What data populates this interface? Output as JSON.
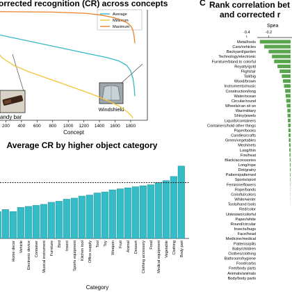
{
  "chart_data": [
    {
      "type": "line",
      "title": "orrected recognition (CR) across concepts",
      "xlabel": "Concept",
      "xticks": [
        "200",
        "400",
        "600",
        "800",
        "1000",
        "1200",
        "1400",
        "1600",
        "1800"
      ],
      "xlim": [
        0,
        1854
      ],
      "ylim": [
        0,
        1
      ],
      "legend": "top-right",
      "series": [
        {
          "name": "Average",
          "color": "#35b9c4",
          "points": [
            [
              0,
              0.8
            ],
            [
              100,
              0.78
            ],
            [
              300,
              0.75
            ],
            [
              500,
              0.72
            ],
            [
              700,
              0.69
            ],
            [
              900,
              0.66
            ],
            [
              1100,
              0.63
            ],
            [
              1300,
              0.6
            ],
            [
              1500,
              0.57
            ],
            [
              1650,
              0.54
            ],
            [
              1750,
              0.5
            ],
            [
              1800,
              0.45
            ],
            [
              1830,
              0.38
            ],
            [
              1845,
              0.3
            ],
            [
              1854,
              0.22
            ]
          ]
        },
        {
          "name": "Minimum",
          "color": "#f3c636",
          "points": [
            [
              0,
              0.75
            ],
            [
              50,
              0.66
            ],
            [
              150,
              0.57
            ],
            [
              300,
              0.5
            ],
            [
              500,
              0.44
            ],
            [
              700,
              0.39
            ],
            [
              900,
              0.34
            ],
            [
              1100,
              0.29
            ],
            [
              1300,
              0.24
            ],
            [
              1500,
              0.18
            ],
            [
              1650,
              0.13
            ],
            [
              1750,
              0.08
            ],
            [
              1800,
              0.05
            ],
            [
              1830,
              0.02
            ]
          ]
        },
        {
          "name": "Maximum",
          "color": "#e8822a",
          "points": [
            [
              0,
              0.99
            ],
            [
              800,
              0.985
            ],
            [
              1200,
              0.975
            ],
            [
              1400,
              0.96
            ],
            [
              1550,
              0.94
            ],
            [
              1650,
              0.92
            ],
            [
              1750,
              0.89
            ],
            [
              1800,
              0.86
            ],
            [
              1830,
              0.82
            ],
            [
              1845,
              0.76
            ],
            [
              1854,
              0.7
            ]
          ]
        }
      ],
      "annotations": [
        "andy bar",
        "Windshield"
      ]
    },
    {
      "type": "bar",
      "title": "Average CR by higher object category",
      "xlabel": "Category",
      "color": "#34bcc7",
      "reference_line": 0.72,
      "ylim": [
        0.45,
        0.88
      ],
      "categories": [
        "Home decor",
        "Vehicle",
        "Electronic device",
        "Container",
        "Musical instrument",
        "Furniture",
        "Bird",
        "Insect",
        "Sports equipment",
        "Kitchen tool",
        "Office supply",
        "Tool",
        "Toy",
        "Weapon",
        "Fruit",
        "Animal",
        "Dessert",
        "Clothing accessory",
        "Food",
        "Medical equipment",
        "Vegetable",
        "Clothing",
        "Body part"
      ],
      "values": [
        0.58,
        0.6,
        0.605,
        0.61,
        0.615,
        0.625,
        0.63,
        0.64,
        0.645,
        0.655,
        0.66,
        0.67,
        0.675,
        0.685,
        0.69,
        0.695,
        0.7,
        0.705,
        0.71,
        0.72,
        0.73,
        0.75,
        0.8
      ],
      "leading_bars": [
        0.58,
        0.59
      ]
    },
    {
      "type": "bar",
      "title": "Rank correlation bet",
      "title_line2": "and corrected r",
      "xlabel": "Spea",
      "xticks": [
        "-0.4",
        "-0.2"
      ],
      "xlim": [
        -0.5,
        0
      ],
      "color": "#5aa64e",
      "categories": [
        "Metal/tools",
        "Cars/vehicles",
        "Backyard/garden",
        "Technology/electronic",
        "Furniture/bland to colorful",
        "Royalty/gold",
        "Flight/air",
        "Tall/big",
        "Wood/brown",
        "Instruments/music",
        "Construction/long",
        "Water/ocean",
        "Circular/round",
        "Wheels/can sit on",
        "War/military",
        "Shiny/jewels",
        "Liquids/containers",
        "Containers/hold other things",
        "Paper/books",
        "Candles/crafts",
        "Green/vegetables",
        "Mesh/nets",
        "Long/thin",
        "Fire/heat",
        "Black/accessories",
        "Long/rope",
        "Dirt/grainy",
        "Pattern/patterned",
        "Sports/sport",
        "Feminine/flowers",
        "Rope/bands",
        "Colorful/colors",
        "White/winter",
        "Tools/hand tools",
        "Red/color",
        "Unknown/colorful",
        "Paper/white",
        "Round/circular",
        "Insects/bugs",
        "Face/head",
        "Medicine/medical",
        "Patterns/pills",
        "Baby/children",
        "Clothes/clothing",
        "Bathroom/hygiene",
        "Food/carbs",
        "Feet/body parts",
        "Animals/animals",
        "Body/body parts"
      ],
      "values": [
        -0.28,
        -0.24,
        -0.2,
        -0.17,
        -0.15,
        -0.12,
        -0.1,
        -0.08,
        -0.07,
        -0.06,
        -0.05,
        -0.045,
        -0.04,
        -0.035,
        -0.03,
        -0.028,
        -0.025,
        -0.022,
        -0.02,
        -0.018,
        -0.016,
        -0.014,
        -0.012,
        -0.01,
        -0.008,
        -0.007,
        -0.006,
        -0.005,
        -0.004,
        -0.003,
        -0.002,
        -0.002,
        -0.001,
        -0.001,
        0,
        0,
        0,
        0,
        0,
        0,
        0,
        0,
        0,
        0,
        0,
        0,
        0,
        0,
        0
      ]
    }
  ],
  "panel_letters": [
    "C"
  ]
}
